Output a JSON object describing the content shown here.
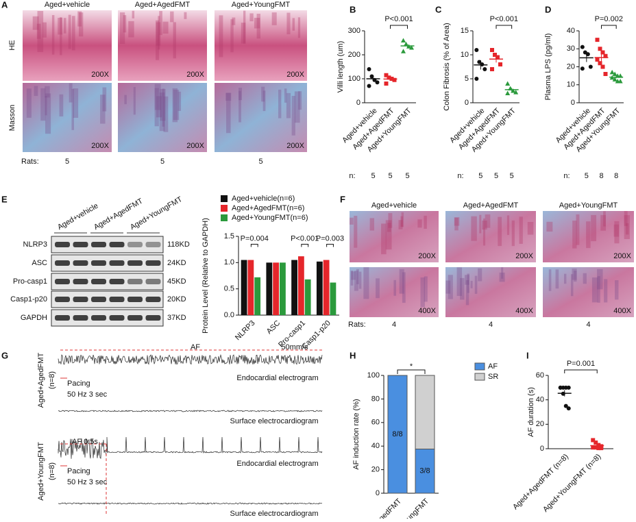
{
  "panel_a": {
    "letter": "A",
    "columns": [
      "Aged+vehicle",
      "Aged+AgedFMT",
      "Aged+YoungFMT"
    ],
    "rows": [
      "HE",
      "Masson"
    ],
    "magnification": [
      "200X",
      "200X",
      "200X",
      "200X",
      "200X",
      "200X"
    ],
    "rats_label": "Rats:",
    "rats": [
      "5",
      "5",
      "5"
    ]
  },
  "panel_e_blot": {
    "letter": "E",
    "groups": [
      "Aged+vehicle",
      "Aged+AgedFMT",
      "Aged+YoungFMT"
    ],
    "proteins": [
      "NLRP3",
      "ASC",
      "Pro-casp1",
      "Casp1-p20",
      "GAPDH"
    ],
    "sizes": [
      "118KD",
      "24KD",
      "45KD",
      "20KD",
      "37KD"
    ]
  },
  "panel_f": {
    "letter": "F",
    "columns": [
      "Aged+vehicle",
      "Aged+AgedFMT",
      "Aged+YoungFMT"
    ],
    "magnification": [
      "200X",
      "200X",
      "200X",
      "400X",
      "400X",
      "400X"
    ],
    "rats_label": "Rats:",
    "rats": [
      "4",
      "4",
      "4"
    ]
  },
  "panel_g": {
    "letter": "G",
    "groups": [
      "Aged+AgedFMT",
      "Aged+YoungFMT"
    ],
    "group_n": [
      "(n=8)",
      "(n=8)"
    ],
    "af_label": "AF",
    "af_short_label": "AF 0.5s",
    "speed": "50mm/s",
    "pacing": [
      "Pacing",
      "Pacing"
    ],
    "pacing_detail": [
      "50 Hz 3 sec",
      "50 Hz 3 sec"
    ],
    "endo": [
      "Endocardial electrogram",
      "Endocardial electrogram"
    ],
    "surface": [
      "Surface electrocardiogram",
      "Surface electrocardiogram"
    ]
  },
  "chart_data": [
    {
      "type": "dot",
      "panel": "B",
      "ylabel": "Villi length (um)",
      "categories": [
        "Aged+vehicle",
        "Aged+AgedFMT",
        "Aged+YoungFMT"
      ],
      "colors": [
        "#111111",
        "#e5262b",
        "#2b9a3c"
      ],
      "values": [
        [
          140,
          110,
          95,
          85,
          70
        ],
        [
          115,
          105,
          100,
          95,
          80
        ],
        [
          260,
          245,
          235,
          230,
          215
        ]
      ],
      "ylim": [
        0,
        300
      ],
      "yticks": [
        0,
        100,
        200,
        300
      ],
      "annotations": [
        "P<0.001"
      ],
      "n_label": "n:",
      "n": [
        "5",
        "5",
        "5"
      ]
    },
    {
      "type": "dot",
      "panel": "C",
      "ylabel": "Colon Fibrosis (% of Area)",
      "categories": [
        "Aged+vehicle",
        "Aged+AgedFMT",
        "Aged+YoungFMT"
      ],
      "colors": [
        "#111111",
        "#e5262b",
        "#2b9a3c"
      ],
      "values": [
        [
          11,
          8.5,
          8,
          7,
          5
        ],
        [
          11,
          10,
          9.5,
          8,
          7
        ],
        [
          4,
          3,
          2.5,
          2.2,
          2
        ]
      ],
      "ylim": [
        0,
        15
      ],
      "yticks": [
        0,
        5,
        10,
        15
      ],
      "annotations": [
        "P<0.001"
      ],
      "n_label": "n:",
      "n": [
        "5",
        "5",
        "5"
      ]
    },
    {
      "type": "dot",
      "panel": "D",
      "ylabel": "Plasma LPS (pg/ml)",
      "categories": [
        "Aged+vehicle",
        "Aged+AgedFMT",
        "Aged+YoungFMT"
      ],
      "colors": [
        "#111111",
        "#e5262b",
        "#2b9a3c"
      ],
      "values": [
        [
          31,
          28,
          27,
          20,
          19
        ],
        [
          35,
          30,
          28,
          26,
          24,
          22,
          20,
          16
        ],
        [
          17,
          16,
          15,
          15,
          14,
          13,
          12,
          12
        ]
      ],
      "ylim": [
        0,
        40
      ],
      "yticks": [
        0,
        10,
        20,
        30,
        40
      ],
      "annotations": [
        "P=0.002"
      ],
      "n_label": "n:",
      "n": [
        "5",
        "8",
        "8"
      ]
    },
    {
      "type": "bar",
      "panel": "",
      "ylabel": "Protein Level (Relative to GAPDH)",
      "categories": [
        "NLRP3",
        "ASC",
        "Pro-casp1",
        "Casp1-p20"
      ],
      "series": [
        {
          "name": "Aged+vehicle(n=6)",
          "color": "#111111",
          "values": [
            1.05,
            1.0,
            1.05,
            1.02
          ]
        },
        {
          "name": "Aged+AgedFMT(n=6)",
          "color": "#e5262b",
          "values": [
            1.05,
            1.0,
            1.12,
            1.05
          ]
        },
        {
          "name": "Aged+YoungFMT(n=6)",
          "color": "#2b9a3c",
          "values": [
            0.72,
            1.0,
            0.68,
            0.62
          ]
        }
      ],
      "ylim": [
        0,
        1.5
      ],
      "yticks": [
        {
          "value": 0,
          "label": "0.0"
        },
        0.5,
        {
          "value": 1,
          "label": "1.0"
        },
        1.5
      ],
      "annotations": [
        "P=0.004",
        "P<0.001",
        "P=0.003"
      ]
    },
    {
      "type": "stacked_bar",
      "panel": "H",
      "ylabel": "AF induction rate (%)",
      "categories": [
        "Aged+AgedFMT",
        "Aged+YoungFMT"
      ],
      "series": [
        {
          "name": "AF",
          "color": "#4a8fe0",
          "values": [
            100,
            37.5
          ],
          "value_labels": [
            "8/8",
            "3/8"
          ]
        },
        {
          "name": "SR",
          "color": "#d0d0d0",
          "values": [
            0,
            62.5
          ]
        }
      ],
      "ylim": [
        0,
        100
      ],
      "yticks": [
        0,
        20,
        40,
        60,
        80,
        100
      ],
      "annotations": [
        "*"
      ]
    },
    {
      "type": "dot",
      "panel": "I",
      "ylabel": "AF duration (s)",
      "categories": [
        "Aged+AgedFMT (n=8)",
        "Aged+YoungFMT (n=8)"
      ],
      "colors": [
        "#111111",
        "#e5262b"
      ],
      "values": [
        [
          50,
          50,
          50,
          50,
          50,
          45,
          35,
          33
        ],
        [
          7,
          5,
          3,
          2,
          1,
          1,
          0.5,
          0.5
        ]
      ],
      "ylim": [
        0,
        60
      ],
      "yticks": [
        0,
        20,
        40,
        60
      ],
      "annotations": [
        "P=0.001"
      ]
    }
  ]
}
